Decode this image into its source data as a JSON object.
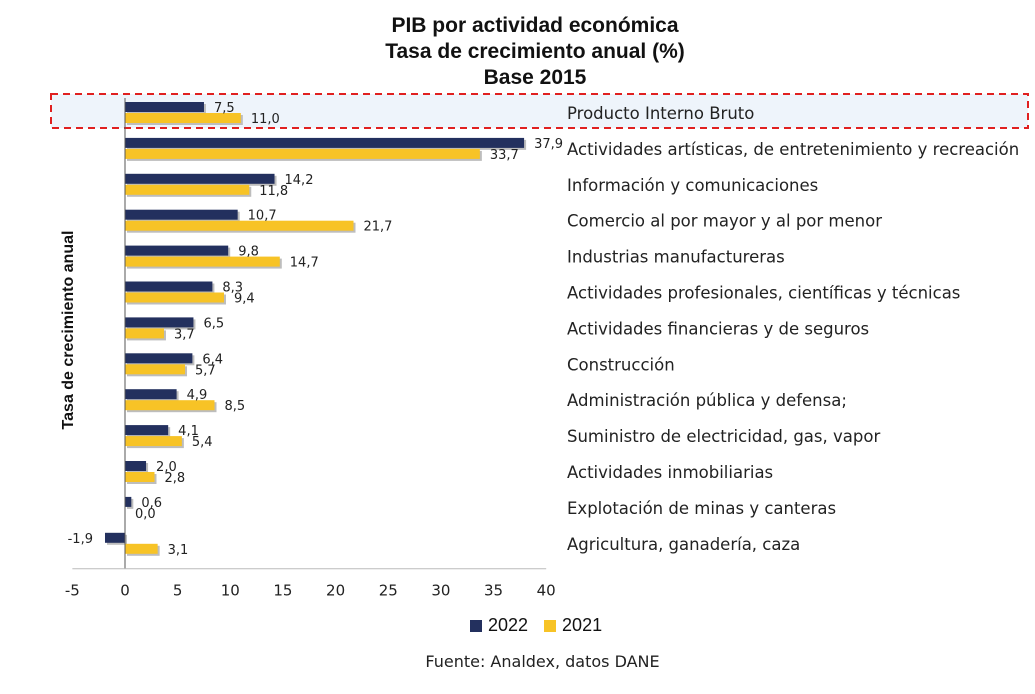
{
  "title": {
    "line1": "PIB por actividad económica",
    "line2": "Tasa de crecimiento anual (%)",
    "line3": "Base 2015"
  },
  "source": "Fuente: Analdex, datos DANE",
  "colors": {
    "series_2022": "#23305e",
    "series_2021": "#f7c326",
    "highlight_border": "#e02020",
    "highlight_fill": "#eef4fb"
  },
  "chart_data": {
    "type": "bar",
    "orientation": "horizontal",
    "ylabel": "Tasa de crecimiento anual",
    "xlabel": "",
    "xlim": [
      -5,
      40
    ],
    "xticks": [
      "-5",
      "0",
      "5",
      "10",
      "15",
      "20",
      "25",
      "30",
      "35",
      "40"
    ],
    "legend_position": "bottom",
    "highlighted_category": "Producto Interno Bruto",
    "categories": [
      "Producto Interno Bruto",
      "Actividades artísticas, de entretenimiento y recreación",
      "Información y comunicaciones",
      "Comercio al por mayor y al por menor",
      "Industrias manufactureras",
      "Actividades profesionales, científicas y técnicas",
      "Actividades financieras y de seguros",
      "Construcción",
      "Administración pública y defensa;",
      "Suministro de electricidad, gas, vapor",
      "Actividades inmobiliarias",
      "Explotación de minas y canteras",
      "Agricultura, ganadería, caza"
    ],
    "series": [
      {
        "name": "2022",
        "values": [
          7.5,
          37.9,
          14.2,
          10.7,
          9.8,
          8.3,
          6.5,
          6.4,
          4.9,
          4.1,
          2.0,
          0.6,
          -1.9
        ],
        "labels": [
          "7,5",
          "37,9",
          "14,2",
          "10,7",
          "9,8",
          "8,3",
          "6,5",
          "6,4",
          "4,9",
          "4,1",
          "2,0",
          "0,6",
          "-1,9"
        ]
      },
      {
        "name": "2021",
        "values": [
          11.0,
          33.7,
          11.8,
          21.7,
          14.7,
          9.4,
          3.7,
          5.7,
          8.5,
          5.4,
          2.8,
          0.0,
          3.1
        ],
        "labels": [
          "11,0",
          "33,7",
          "11,8",
          "21,7",
          "14,7",
          "9,4",
          "3,7",
          "5,7",
          "8,5",
          "5,4",
          "2,8",
          "0,0",
          "3,1"
        ]
      }
    ]
  }
}
